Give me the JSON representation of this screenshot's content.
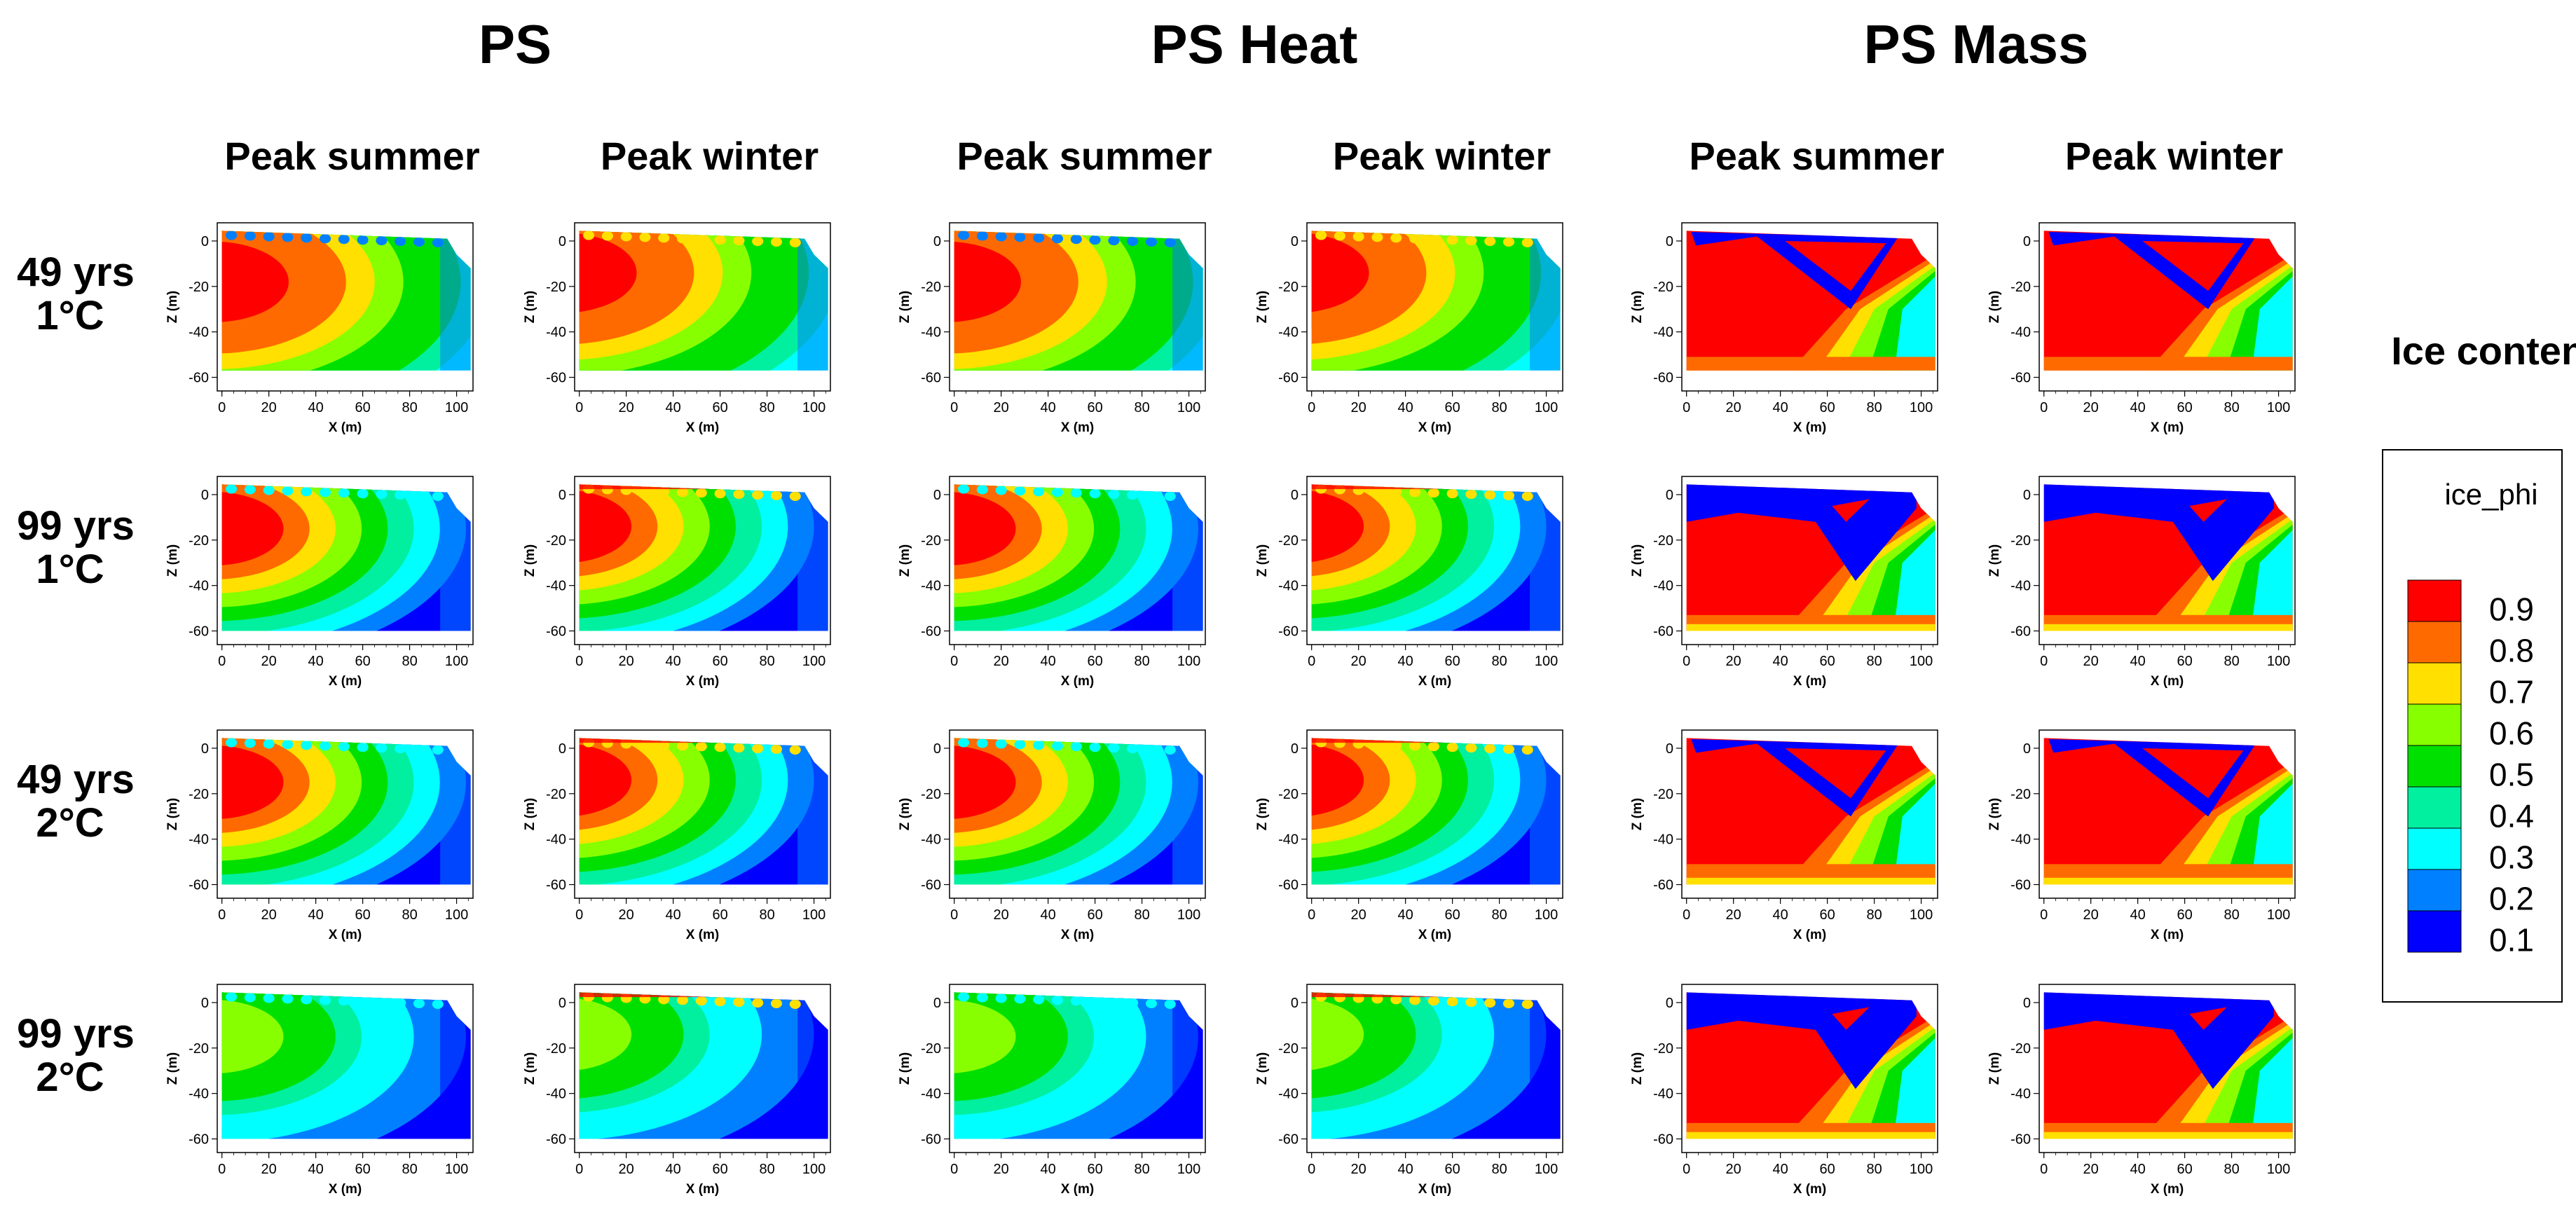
{
  "chart_data": {
    "type": "heatmap",
    "description_free": true,
    "groups": [
      "PS",
      "PS Heat",
      "PS Mass"
    ],
    "columns": [
      {
        "group": "PS",
        "title": "Peak summer"
      },
      {
        "group": "PS",
        "title": "Peak winter"
      },
      {
        "group": "PS Heat",
        "title": "Peak summer"
      },
      {
        "group": "PS Heat",
        "title": "Peak winter"
      },
      {
        "group": "PS Mass",
        "title": "Peak summer"
      },
      {
        "group": "PS Mass",
        "title": "Peak winter"
      }
    ],
    "rows": [
      {
        "line1": "49 yrs",
        "line2": "1°C"
      },
      {
        "line1": "99 yrs",
        "line2": "1°C"
      },
      {
        "line1": "49 yrs",
        "line2": "2°C"
      },
      {
        "line1": "99 yrs",
        "line2": "2°C"
      }
    ],
    "xlabel": "X (m)",
    "ylabel": "Z (m)",
    "xticks": [
      0,
      20,
      40,
      60,
      80,
      100
    ],
    "yticks": [
      0,
      -20,
      -40,
      -60
    ],
    "xlim": [
      -2,
      107
    ],
    "ylim": [
      -66,
      8
    ],
    "colorbar": {
      "title": "Ice content",
      "variable": "ice_phi",
      "levels": [
        0.9,
        0.8,
        0.7,
        0.6,
        0.5,
        0.4,
        0.3,
        0.2,
        0.1
      ],
      "colors": [
        "#ff0000",
        "#ff6a00",
        "#ffe000",
        "#88ff00",
        "#00e000",
        "#00f0a0",
        "#00ffff",
        "#0080ff",
        "#0000ff"
      ]
    },
    "panel_style": {
      "PS": [
        {
          "core": 0.9,
          "step": 0.12
        },
        {
          "core": 0.9,
          "step": 0.1
        },
        {
          "core": 0.9,
          "step": 0.1
        },
        {
          "core": 0.6,
          "step": 0.09
        }
      ],
      "winter": [
        {
          "core": 0.9,
          "step": 0.12
        },
        {
          "core": 0.9,
          "step": 0.1
        },
        {
          "core": 0.9,
          "step": 0.1
        },
        {
          "core": 0.6,
          "step": 0.09
        }
      ]
    }
  }
}
